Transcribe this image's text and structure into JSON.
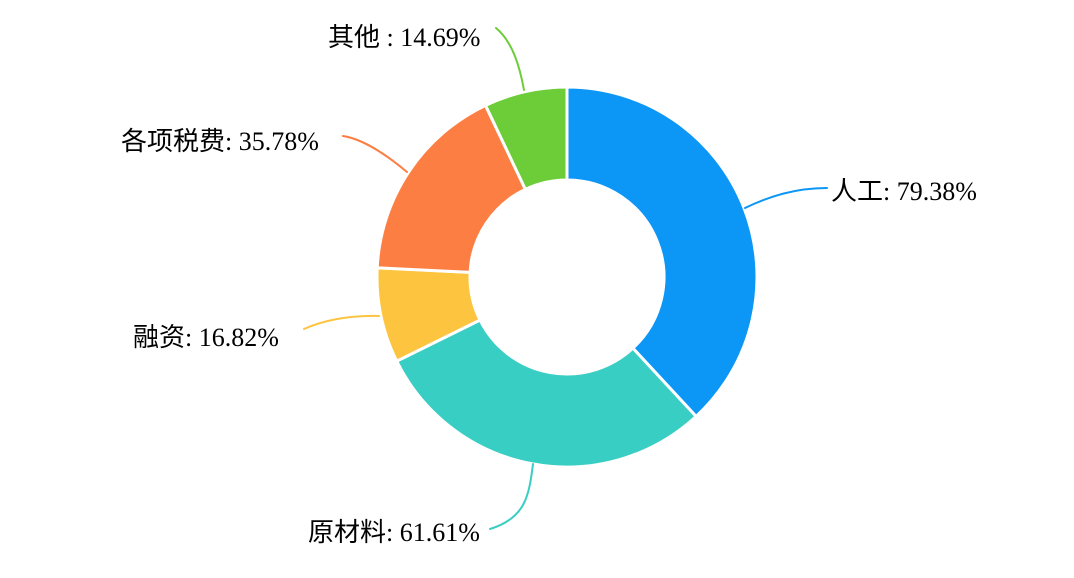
{
  "chart_data": {
    "type": "pie",
    "subtype": "donut",
    "title": "",
    "legend": "none",
    "slices": [
      {
        "name": "人工",
        "value": 79.38,
        "display": "人工: 79.38%",
        "color": "#0C96F6"
      },
      {
        "name": "原材料",
        "value": 61.61,
        "display": "原材料: 61.61%",
        "color": "#39CEC4"
      },
      {
        "name": "融资",
        "value": 16.82,
        "display": "融资: 16.82%",
        "color": "#FDC43F"
      },
      {
        "name": "各项税费",
        "value": 35.78,
        "display": "各项税费: 35.78%",
        "color": "#FD7E43"
      },
      {
        "name": "其他",
        "value": 14.69,
        "display": "其他 : 14.69%",
        "color": "#6CCD39"
      }
    ],
    "layout_hints": {
      "start_angle": "top",
      "direction": "clockwise",
      "labels": "outside with curved leader lines",
      "slice_angles_proportional_to": "value / sum of values",
      "slice_border_color": "#FFFFFF"
    }
  },
  "background_color": "#FFFFFF"
}
